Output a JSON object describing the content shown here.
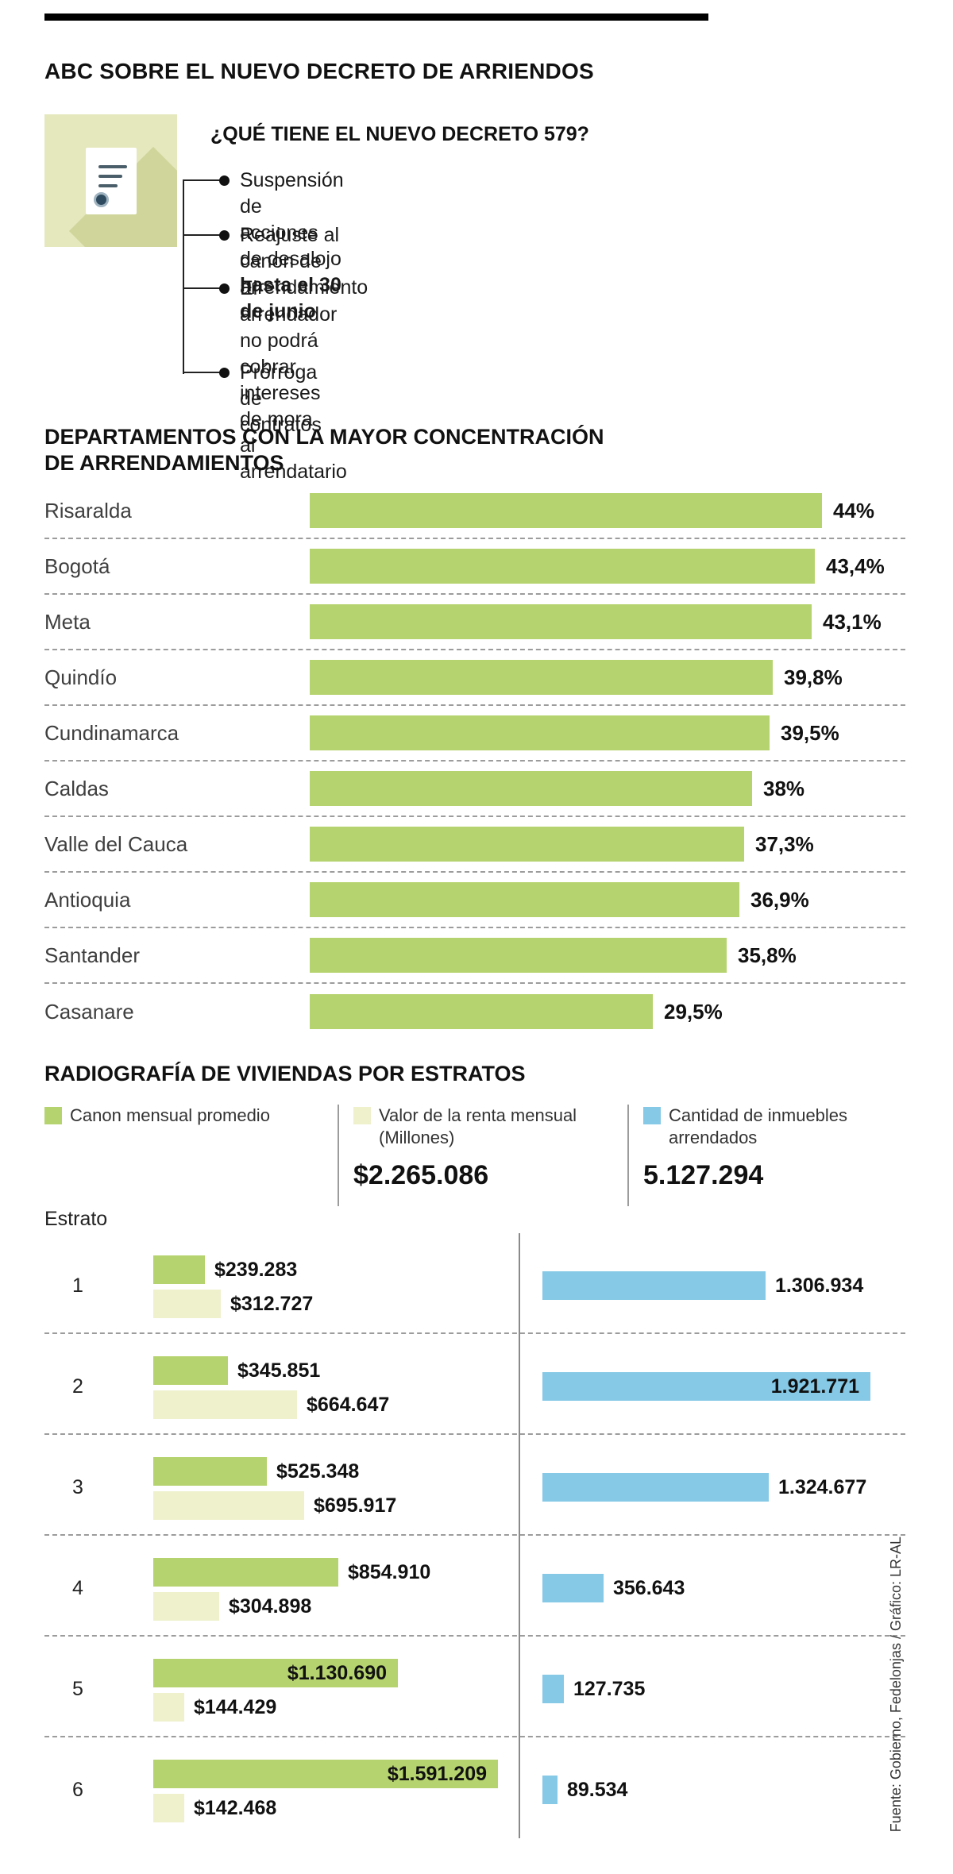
{
  "header": {
    "title": "ABC SOBRE EL NUEVO DECRETO DE ARRIENDOS"
  },
  "decreto": {
    "heading": "¿QUÉ TIENE EL NUEVO DECRETO 579?",
    "items": [
      {
        "text": "Suspensión de acciones de desalojo ",
        "bold": "hasta el 30 de junio"
      },
      {
        "text": "Reajuste al canon de arrendamiento",
        "bold": ""
      },
      {
        "text": "El arrendador no podrá cobrar intereses de mora\nal arrendatario",
        "bold": ""
      },
      {
        "text": "Prórroga de contratos",
        "bold": ""
      }
    ]
  },
  "source": "Fuente: Gobierno, Fedelonjas / Gráfico: LR-AL",
  "chart_data": [
    {
      "type": "bar",
      "orientation": "horizontal",
      "title": "DEPARTAMENTOS CON LA MAYOR CONCENTRACIÓN\nDE ARRENDAMIENTOS",
      "categories": [
        "Risaralda",
        "Bogotá",
        "Meta",
        "Quindío",
        "Cundinamarca",
        "Caldas",
        "Valle del Cauca",
        "Antioquia",
        "Santander",
        "Casanare"
      ],
      "values": [
        44,
        43.4,
        43.1,
        39.8,
        39.5,
        38,
        37.3,
        36.9,
        35.8,
        29.5
      ],
      "value_labels": [
        "44%",
        "43,4%",
        "43,1%",
        "39,8%",
        "39,5%",
        "38%",
        "37,3%",
        "36,9%",
        "35,8%",
        "29,5%"
      ],
      "bar_color": "#b5d36e",
      "xlim": [
        0,
        44
      ],
      "grid": false,
      "separator_style": "dashed"
    },
    {
      "type": "bar",
      "orientation": "horizontal",
      "title": "RADIOGRAFÍA DE VIVIENDAS POR ESTRATOS",
      "axis_label": "Estrato",
      "legend": [
        {
          "label": "Canon mensual promedio",
          "color": "#b5d36e",
          "total": ""
        },
        {
          "label": "Valor de la renta mensual (Millones)",
          "color": "#eff1cd",
          "total": "$2.265.086"
        },
        {
          "label": "Cantidad de inmuebles arrendados",
          "color": "#85c9e6",
          "total": "5.127.294"
        }
      ],
      "axis_max": {
        "canon": 1591209,
        "inmuebles": 1921771
      },
      "rows": [
        {
          "estrato": "1",
          "canon": 239283,
          "canon_label": "$239.283",
          "canon_inside": false,
          "renta": 312727,
          "renta_label": "$312.727",
          "inmuebles": 1306934,
          "inmuebles_label": "1.306.934",
          "inmuebles_inside": false
        },
        {
          "estrato": "2",
          "canon": 345851,
          "canon_label": "$345.851",
          "canon_inside": false,
          "renta": 664647,
          "renta_label": "$664.647",
          "inmuebles": 1921771,
          "inmuebles_label": "1.921.771",
          "inmuebles_inside": true
        },
        {
          "estrato": "3",
          "canon": 525348,
          "canon_label": "$525.348",
          "canon_inside": false,
          "renta": 695917,
          "renta_label": "$695.917",
          "inmuebles": 1324677,
          "inmuebles_label": "1.324.677",
          "inmuebles_inside": false
        },
        {
          "estrato": "4",
          "canon": 854910,
          "canon_label": "$854.910",
          "canon_inside": false,
          "renta": 304898,
          "renta_label": "$304.898",
          "inmuebles": 356643,
          "inmuebles_label": "356.643",
          "inmuebles_inside": false
        },
        {
          "estrato": "5",
          "canon": 1130690,
          "canon_label": "$1.130.690",
          "canon_inside": true,
          "renta": 144429,
          "renta_label": "$144.429",
          "inmuebles": 127735,
          "inmuebles_label": "127.735",
          "inmuebles_inside": false
        },
        {
          "estrato": "6",
          "canon": 1591209,
          "canon_label": "$1.591.209",
          "canon_inside": true,
          "renta": 142468,
          "renta_label": "$142.468",
          "inmuebles": 89534,
          "inmuebles_label": "89.534",
          "inmuebles_inside": false
        }
      ]
    }
  ]
}
